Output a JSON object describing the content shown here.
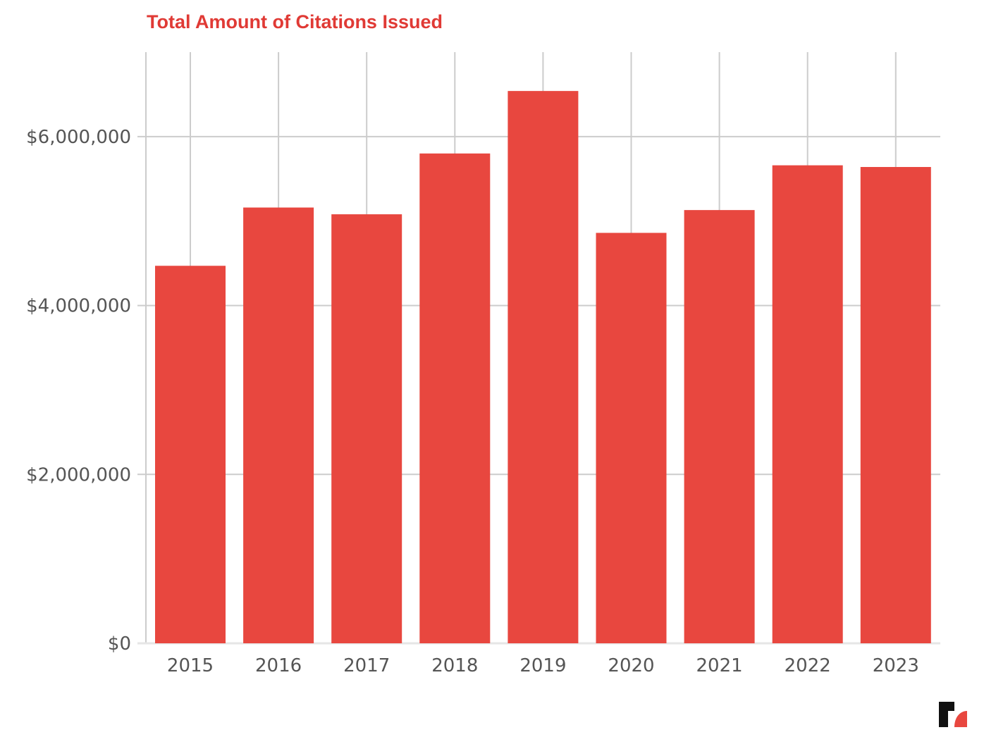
{
  "chart_data": {
    "type": "bar",
    "title": "Total Amount of Citations Issued",
    "xlabel": "",
    "ylabel": "",
    "categories": [
      "2015",
      "2016",
      "2017",
      "2018",
      "2019",
      "2020",
      "2021",
      "2022",
      "2023"
    ],
    "values": [
      4470000,
      5160000,
      5080000,
      5800000,
      6540000,
      4860000,
      5130000,
      5660000,
      5640000
    ],
    "ylim": [
      0,
      7000000
    ],
    "yticks": [
      0,
      2000000,
      4000000,
      6000000
    ],
    "ytick_labels": [
      "$0",
      "$2,000,000",
      "$4,000,000",
      "$6,000,000"
    ],
    "grid": true,
    "legend": "none",
    "bar_color": "#e8473f",
    "title_color": "#e03a35"
  },
  "brand": {
    "logo_icon": "brand-r-logo-icon",
    "colors": [
      "#111111",
      "#e8473f"
    ]
  }
}
